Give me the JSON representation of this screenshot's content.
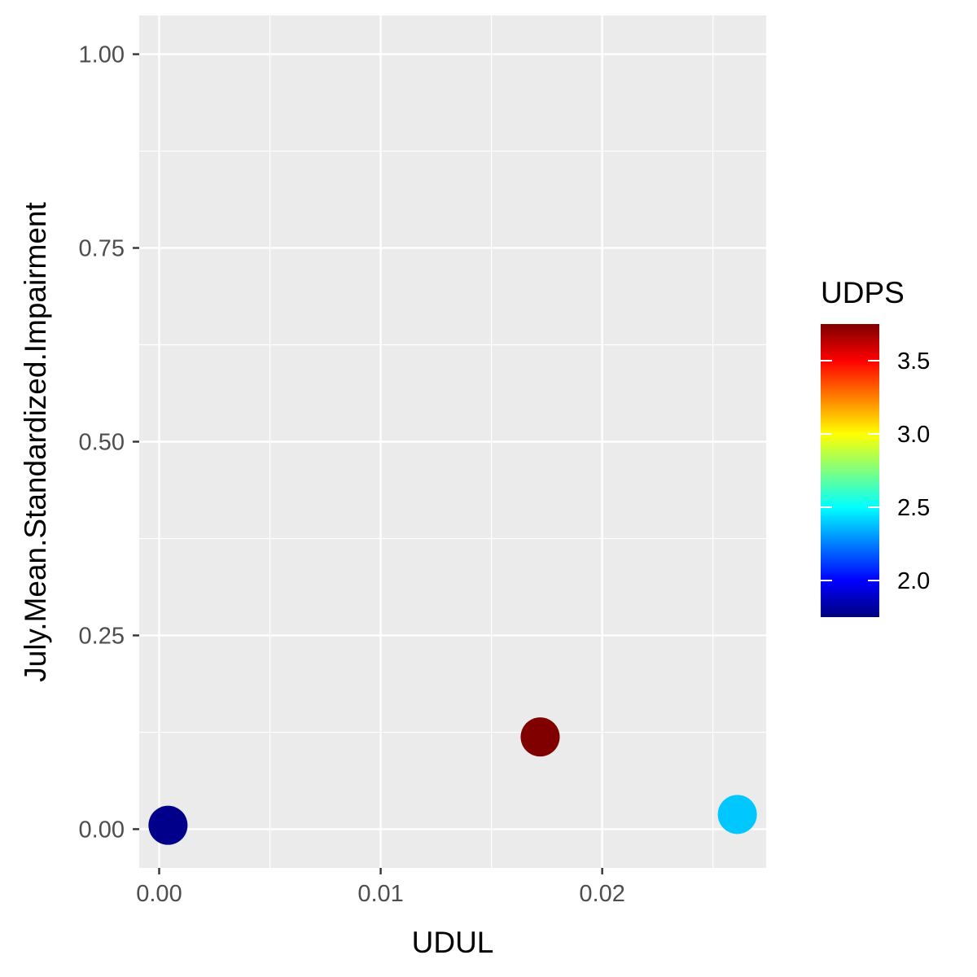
{
  "chart_data": {
    "type": "scatter",
    "xlabel": "UDUL",
    "ylabel": "July.Mean.Standardized.Impairment",
    "xlim": [
      -0.0009,
      0.0274
    ],
    "ylim": [
      -0.05,
      1.05
    ],
    "x_ticks": [
      0.0,
      0.01,
      0.02
    ],
    "x_tick_labels": [
      "0.00",
      "0.01",
      "0.02"
    ],
    "y_ticks": [
      0.0,
      0.25,
      0.5,
      0.75,
      1.0
    ],
    "y_tick_labels": [
      "0.00",
      "0.25",
      "0.50",
      "0.75",
      "1.00"
    ],
    "grid": true,
    "panel_background": "#ebebeb",
    "grid_color": "#ffffff",
    "points": [
      {
        "x": 0.0004,
        "y": 0.005,
        "color_value": 1.75,
        "color": "#00008b"
      },
      {
        "x": 0.0172,
        "y": 0.119,
        "color_value": 3.75,
        "color": "#800000"
      },
      {
        "x": 0.0261,
        "y": 0.019,
        "color_value": 2.45,
        "color": "#00c8ff"
      }
    ],
    "color_legend": {
      "title": "UDPS",
      "position": "right",
      "range": [
        1.75,
        3.75
      ],
      "ticks": [
        2.0,
        2.5,
        3.0,
        3.5
      ],
      "tick_labels": [
        "2.0",
        "2.5",
        "3.0",
        "3.5"
      ],
      "colormap": [
        "#00007f",
        "#0000ff",
        "#007fff",
        "#00ffff",
        "#7fff7f",
        "#ffff00",
        "#ff7f00",
        "#ff0000",
        "#7f0000"
      ]
    }
  }
}
